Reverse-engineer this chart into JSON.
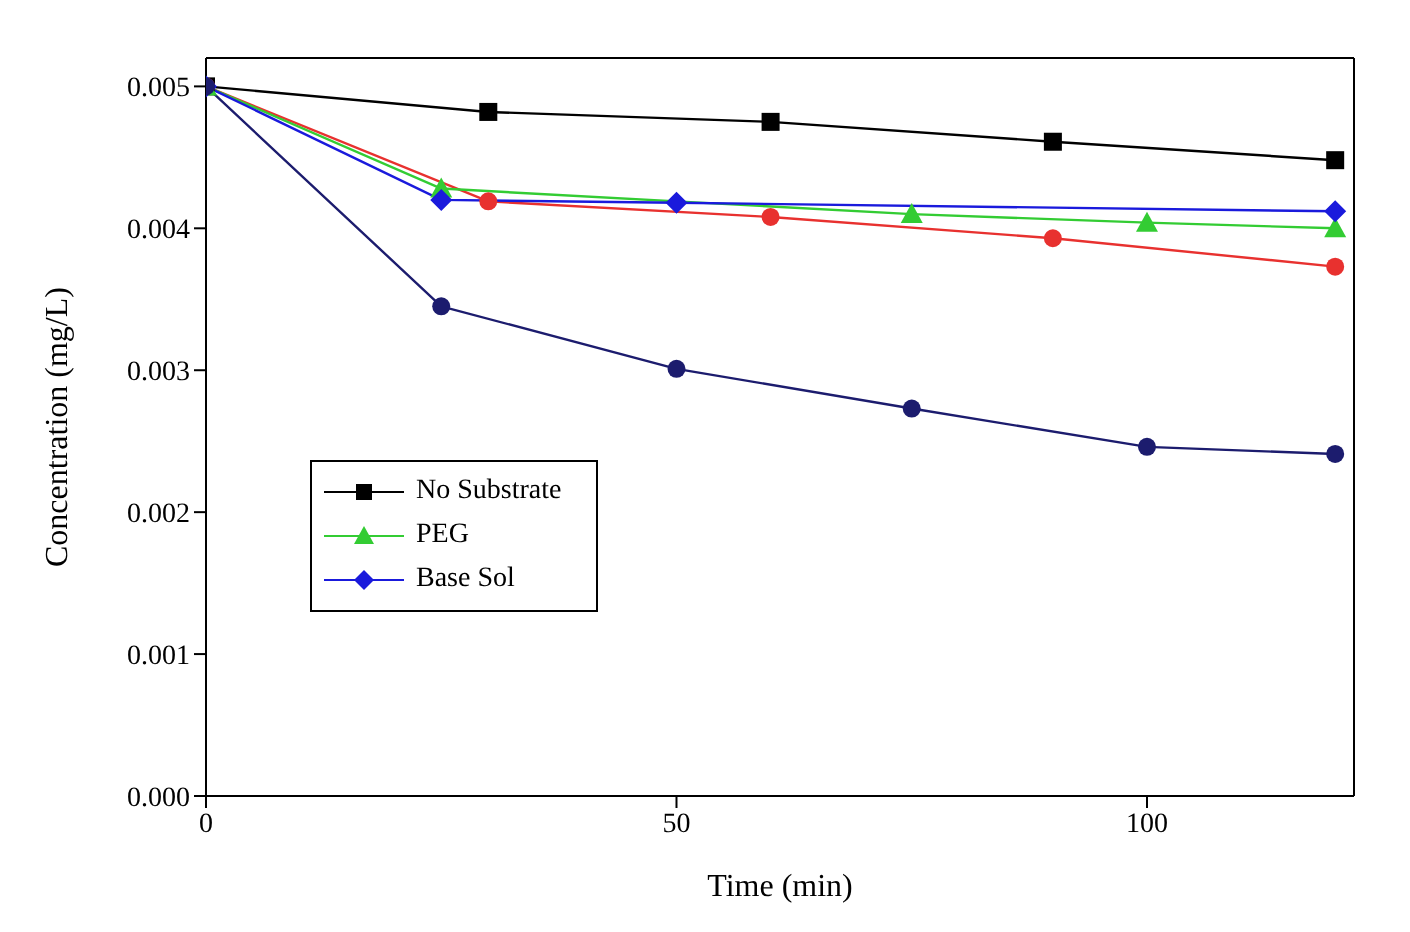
{
  "chart_data": {
    "type": "line",
    "xlabel": "Time (min)",
    "ylabel": "Concentration (mg/L)",
    "xlim": [
      0,
      122
    ],
    "xticks": [
      0,
      50,
      100
    ],
    "ylim": [
      0,
      0.0052
    ],
    "yticks": [
      {
        "value": 0,
        "label": "0.000"
      },
      {
        "value": 0.001,
        "label": "0.001"
      },
      {
        "value": 0.002,
        "label": "0.002"
      },
      {
        "value": 0.003,
        "label": "0.003"
      },
      {
        "value": 0.004,
        "label": "0.004"
      },
      {
        "value": 0.005,
        "label": "0.005"
      }
    ],
    "grid": false,
    "legend": "bottom left",
    "line_style": "solid",
    "series": [
      {
        "name": "No Substrate",
        "color": "#000000",
        "marker": "square",
        "x": [
          0,
          30,
          60,
          90,
          120
        ],
        "values": [
          0.005,
          0.00482,
          0.00475,
          0.00461,
          0.00448
        ]
      },
      {
        "color": "#e8312f",
        "marker": "circle",
        "x": [
          0,
          30,
          60,
          90,
          120
        ],
        "values": [
          0.005,
          0.00419,
          0.00408,
          0.00393,
          0.00373
        ]
      },
      {
        "name": "PEG",
        "color": "#33cc33",
        "marker": "triangle",
        "x": [
          0,
          25,
          75,
          100,
          120
        ],
        "values": [
          0.005,
          0.00428,
          0.0041,
          0.00404,
          0.004
        ]
      },
      {
        "name": "Base Sol",
        "color": "#1a1adc",
        "marker": "diamond",
        "x": [
          0,
          25,
          50,
          120
        ],
        "values": [
          0.005,
          0.0042,
          0.00418,
          0.00412
        ]
      },
      {
        "color": "#1c1c6e",
        "marker": "circle",
        "x": [
          0,
          25,
          50,
          75,
          100,
          120
        ],
        "values": [
          0.005,
          0.00345,
          0.00301,
          0.00273,
          0.00246,
          0.00241
        ]
      }
    ]
  }
}
